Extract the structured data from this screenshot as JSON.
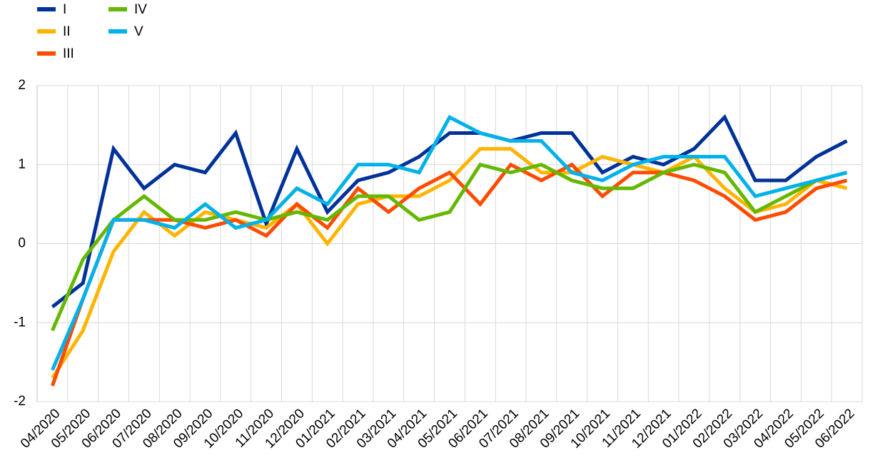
{
  "chart_data": {
    "type": "line",
    "categories": [
      "04/2020",
      "05/2020",
      "06/2020",
      "07/2020",
      "08/2020",
      "09/2020",
      "10/2020",
      "11/2020",
      "12/2020",
      "01/2021",
      "02/2021",
      "03/2021",
      "04/2021",
      "05/2021",
      "06/2021",
      "07/2021",
      "08/2021",
      "09/2021",
      "10/2021",
      "11/2021",
      "12/2021",
      "01/2022",
      "02/2022",
      "03/2022",
      "04/2022",
      "05/2022",
      "06/2022"
    ],
    "series": [
      {
        "name": "I",
        "color": "#003299",
        "values": [
          -0.8,
          -0.5,
          1.2,
          0.7,
          1.0,
          0.9,
          1.4,
          0.25,
          1.2,
          0.4,
          0.8,
          0.9,
          1.1,
          1.4,
          1.4,
          1.3,
          1.4,
          1.4,
          0.9,
          1.1,
          1.0,
          1.2,
          1.6,
          0.8,
          0.8,
          1.1,
          1.3
        ]
      },
      {
        "name": "II",
        "color": "#ffb400",
        "values": [
          -1.7,
          -1.1,
          -0.1,
          0.4,
          0.1,
          0.4,
          0.3,
          0.2,
          0.5,
          0.0,
          0.5,
          0.6,
          0.6,
          0.8,
          1.2,
          1.2,
          0.9,
          0.9,
          1.1,
          1.0,
          0.9,
          1.1,
          0.7,
          0.4,
          0.5,
          0.8,
          0.7
        ]
      },
      {
        "name": "III",
        "color": "#ff4b00",
        "values": [
          -1.8,
          -0.7,
          0.3,
          0.3,
          0.3,
          0.2,
          0.3,
          0.1,
          0.5,
          0.2,
          0.7,
          0.4,
          0.7,
          0.9,
          0.5,
          1.0,
          0.8,
          1.0,
          0.6,
          0.9,
          0.9,
          0.8,
          0.6,
          0.3,
          0.4,
          0.7,
          0.8
        ]
      },
      {
        "name": "IV",
        "color": "#65b800",
        "values": [
          -1.1,
          -0.2,
          0.3,
          0.6,
          0.3,
          0.3,
          0.4,
          0.3,
          0.4,
          0.3,
          0.6,
          0.6,
          0.3,
          0.4,
          1.0,
          0.9,
          1.0,
          0.8,
          0.7,
          0.7,
          0.9,
          1.0,
          0.9,
          0.4,
          0.6,
          0.8,
          0.9
        ]
      },
      {
        "name": "V",
        "color": "#00b1ea",
        "values": [
          -1.6,
          -0.7,
          0.3,
          0.3,
          0.2,
          0.5,
          0.2,
          0.3,
          0.7,
          0.5,
          1.0,
          1.0,
          0.9,
          1.6,
          1.4,
          1.3,
          1.3,
          0.9,
          0.8,
          1.0,
          1.1,
          1.1,
          1.1,
          0.6,
          0.7,
          0.8,
          0.9
        ]
      }
    ],
    "ylim": [
      -2,
      2
    ],
    "yticks": [
      -2,
      -1,
      0,
      1,
      2
    ],
    "grid": true,
    "legend": "top-left"
  }
}
